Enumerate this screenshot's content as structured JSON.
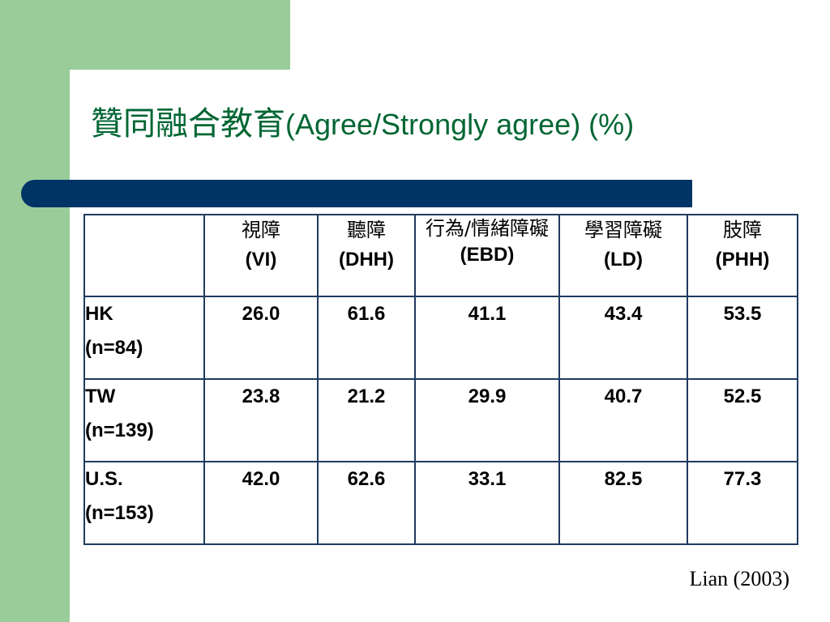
{
  "slide": {
    "title_cjk": "贊同融合教育",
    "title_latin": "(Agree/Strongly agree) (%)",
    "source": "Lian (2003)",
    "colors": {
      "green": "#99cc99",
      "title": "#006633",
      "bar": "#003366"
    }
  },
  "table": {
    "headers": [
      {
        "zh": "",
        "en": ""
      },
      {
        "zh": "視障",
        "en": "(VI)"
      },
      {
        "zh": "聽障",
        "en": "(DHH)"
      },
      {
        "zh": "行為/情緒障礙",
        "en": "(EBD)"
      },
      {
        "zh": "學習障礙",
        "en": "(LD)"
      },
      {
        "zh": "肢障",
        "en": "(PHH)"
      }
    ],
    "rows": [
      {
        "region": "HK",
        "n": "(n=84)",
        "values": [
          "26.0",
          "61.6",
          "41.1",
          "43.4",
          "53.5"
        ]
      },
      {
        "region": "TW",
        "n": "(n=139)",
        "values": [
          "23.8",
          "21.2",
          "29.9",
          "40.7",
          "52.5"
        ]
      },
      {
        "region": "U.S.",
        "n": "(n=153)",
        "values": [
          "42.0",
          "62.6",
          "33.1",
          "82.5",
          "77.3"
        ]
      }
    ]
  }
}
